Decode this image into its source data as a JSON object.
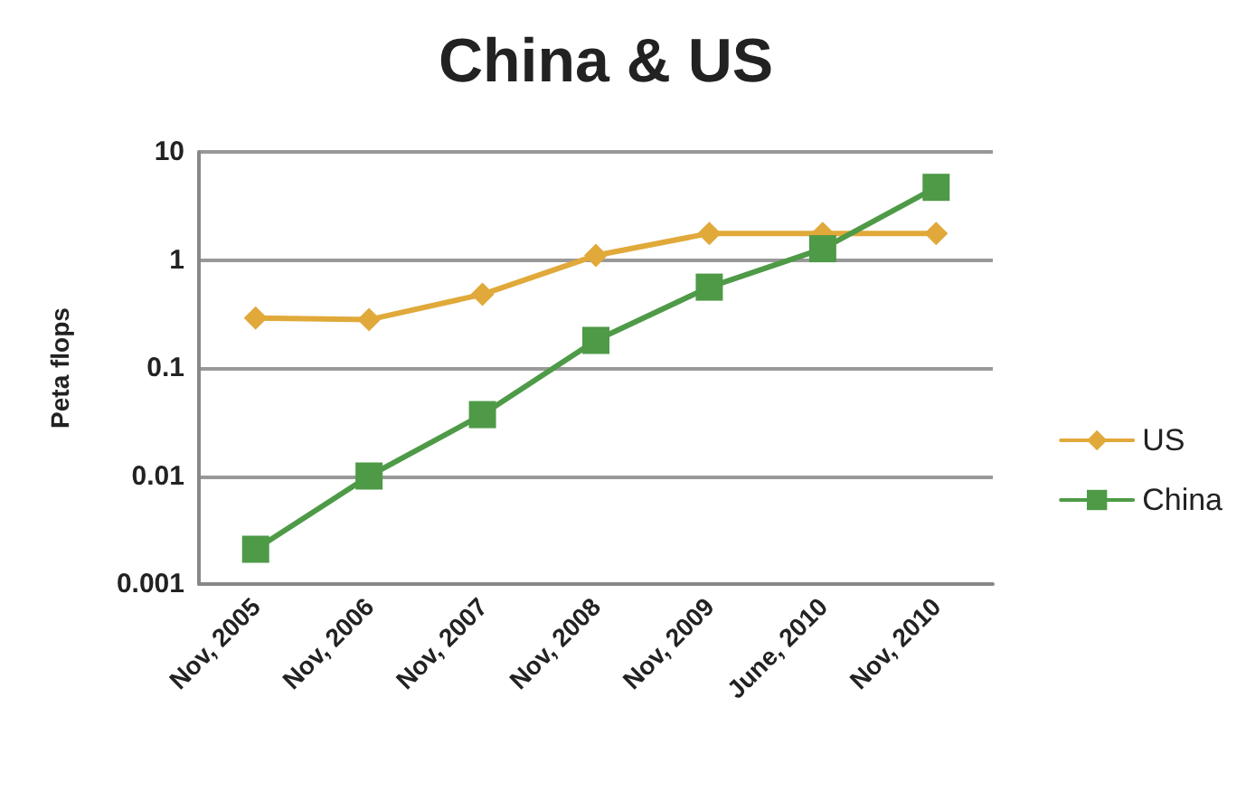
{
  "chart_data": {
    "type": "line",
    "title": "China & US",
    "ylabel": "Peta flops",
    "categories": [
      "Nov, 2005",
      "Nov, 2006",
      "Nov, 2007",
      "Nov, 2008",
      "Nov, 2009",
      "June, 2010",
      "Nov, 2010"
    ],
    "series": [
      {
        "name": "US",
        "color": "#e0a93a",
        "marker": "diamond",
        "values": [
          0.29,
          0.28,
          0.48,
          1.1,
          1.76,
          1.76,
          1.76
        ]
      },
      {
        "name": "China",
        "color": "#4e9a47",
        "marker": "square",
        "values": [
          0.0021,
          0.01,
          0.037,
          0.18,
          0.56,
          1.27,
          4.7
        ]
      }
    ],
    "log": true,
    "ylim": [
      0.001,
      10
    ],
    "yticks": [
      0.001,
      0.01,
      0.1,
      1,
      10
    ],
    "grid": "y",
    "legend": "right",
    "line_style": "solid"
  }
}
